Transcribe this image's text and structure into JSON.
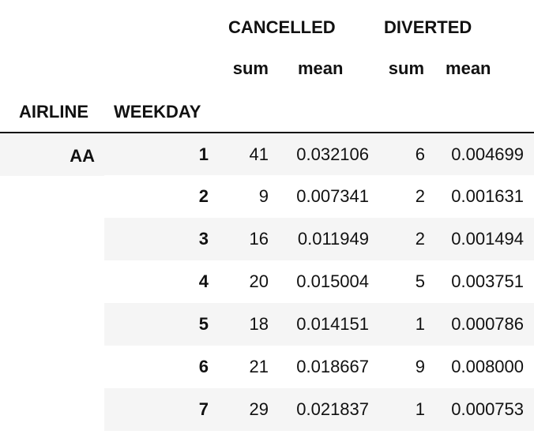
{
  "columns": {
    "groups": [
      "CANCELLED",
      "DIVERTED"
    ],
    "subheaders": [
      "sum",
      "mean",
      "sum",
      "mean"
    ],
    "index_names": [
      "AIRLINE",
      "WEEKDAY"
    ]
  },
  "rows": [
    {
      "airline": "AA",
      "weekday": "1",
      "cancelled_sum": "41",
      "cancelled_mean": "0.032106",
      "diverted_sum": "6",
      "diverted_mean": "0.004699"
    },
    {
      "airline": "",
      "weekday": "2",
      "cancelled_sum": "9",
      "cancelled_mean": "0.007341",
      "diverted_sum": "2",
      "diverted_mean": "0.001631"
    },
    {
      "airline": "",
      "weekday": "3",
      "cancelled_sum": "16",
      "cancelled_mean": "0.011949",
      "diverted_sum": "2",
      "diverted_mean": "0.001494"
    },
    {
      "airline": "",
      "weekday": "4",
      "cancelled_sum": "20",
      "cancelled_mean": "0.015004",
      "diverted_sum": "5",
      "diverted_mean": "0.003751"
    },
    {
      "airline": "",
      "weekday": "5",
      "cancelled_sum": "18",
      "cancelled_mean": "0.014151",
      "diverted_sum": "1",
      "diverted_mean": "0.000786"
    },
    {
      "airline": "",
      "weekday": "6",
      "cancelled_sum": "21",
      "cancelled_mean": "0.018667",
      "diverted_sum": "9",
      "diverted_mean": "0.008000"
    },
    {
      "airline": "",
      "weekday": "7",
      "cancelled_sum": "29",
      "cancelled_mean": "0.021837",
      "diverted_sum": "1",
      "diverted_mean": "0.000753"
    }
  ],
  "colors": {
    "stripe": "#f5f5f5",
    "text": "#111111",
    "rule": "#111111"
  }
}
